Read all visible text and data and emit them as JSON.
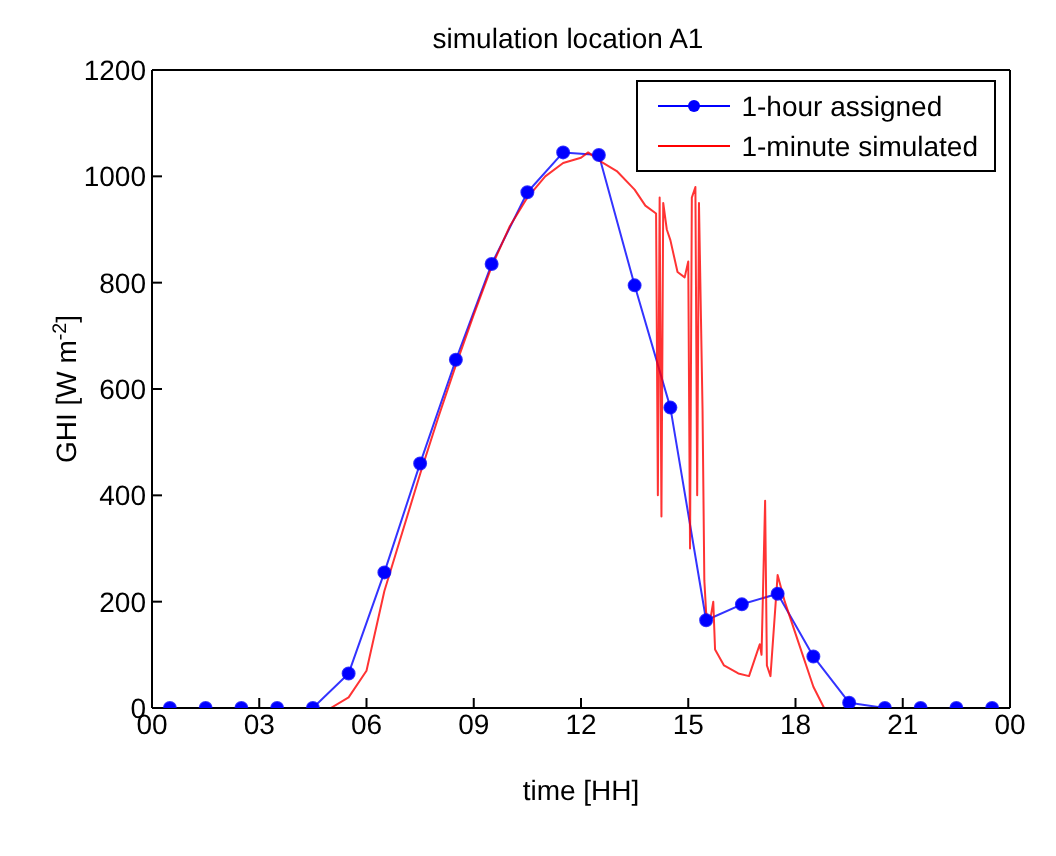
{
  "chart_data": {
    "type": "line",
    "title": "simulation location A1",
    "xlabel": "time [HH]",
    "ylabel": "GHI [W m$^{-2}$]",
    "xlim": [
      0,
      24
    ],
    "xticks": [
      {
        "value": 0,
        "label": "00"
      },
      {
        "value": 3,
        "label": "03"
      },
      {
        "value": 6,
        "label": "06"
      },
      {
        "value": 9,
        "label": "09"
      },
      {
        "value": 12,
        "label": "12"
      },
      {
        "value": 15,
        "label": "15"
      },
      {
        "value": 18,
        "label": "18"
      },
      {
        "value": 21,
        "label": "21"
      },
      {
        "value": 24,
        "label": "00"
      }
    ],
    "ylim": [
      0,
      1200
    ],
    "yticks": [
      0,
      200,
      400,
      600,
      800,
      1000,
      1200
    ],
    "legend": "top right",
    "series": [
      {
        "name": "1-hour assigned",
        "color": "#0000ff",
        "marker": "circle",
        "x": [
          0.5,
          1.5,
          2.5,
          3.5,
          4.5,
          5.5,
          6.5,
          7.5,
          8.5,
          9.5,
          10.5,
          11.5,
          12.5,
          13.5,
          14.5,
          15.5,
          16.5,
          17.5,
          18.5,
          19.5,
          20.5,
          21.5,
          22.5,
          23.5
        ],
        "values": [
          0,
          0,
          0,
          0,
          0,
          65,
          255,
          460,
          655,
          835,
          970,
          1045,
          1040,
          795,
          565,
          165,
          195,
          215,
          97,
          10,
          0,
          0,
          0,
          0
        ]
      },
      {
        "name": "1-minute simulated",
        "color": "#ff0000",
        "marker": "none",
        "x": [
          0,
          5,
          5.5,
          6,
          6.5,
          7,
          7.5,
          8,
          8.5,
          9,
          9.5,
          10,
          10.5,
          11,
          11.5,
          12,
          12.2,
          12.5,
          13,
          13.5,
          13.8,
          14.1,
          14.15,
          14.2,
          14.25,
          14.3,
          14.4,
          14.5,
          14.7,
          14.9,
          15,
          15.05,
          15.1,
          15.2,
          15.25,
          15.3,
          15.4,
          15.45,
          15.5,
          15.6,
          15.7,
          15.75,
          16,
          16.4,
          16.7,
          16.9,
          17,
          17.05,
          17.15,
          17.2,
          17.3,
          17.5,
          17.7,
          18,
          18.5,
          18.8,
          24
        ],
        "values": [
          0,
          0,
          20,
          70,
          220,
          330,
          440,
          545,
          645,
          740,
          830,
          905,
          960,
          1000,
          1025,
          1035,
          1045,
          1030,
          1010,
          975,
          945,
          930,
          400,
          960,
          360,
          950,
          900,
          880,
          820,
          810,
          840,
          300,
          960,
          980,
          400,
          950,
          560,
          240,
          180,
          160,
          200,
          110,
          80,
          65,
          60,
          100,
          120,
          100,
          390,
          80,
          60,
          250,
          200,
          140,
          40,
          0,
          0
        ]
      }
    ]
  }
}
